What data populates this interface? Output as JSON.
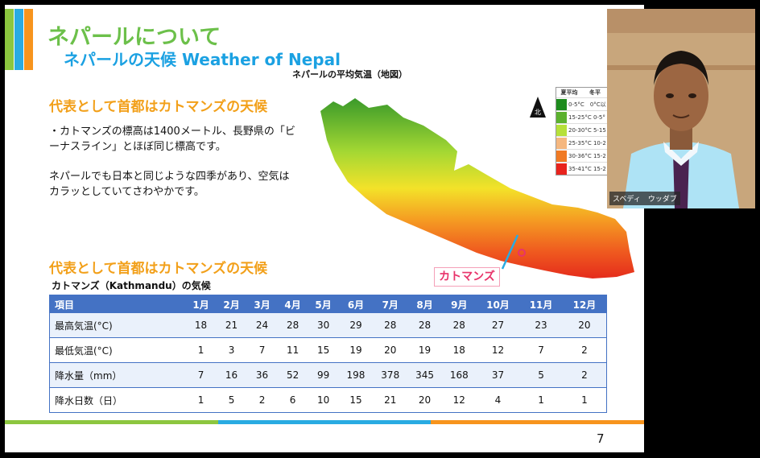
{
  "slide": {
    "title": "ネパールについて",
    "subtitle": "ネパールの天候 Weather of Nepal",
    "map_title": "ネパールの平均気温（地図）",
    "heading1": "代表として首都はカトマンズの天候",
    "paragraph1": "・カトマンズの標高は1400メートル、長野県の「ビーナスライン」とほぼ同じ標高です。",
    "paragraph2": "ネパールでも日本と同じような四季があり、空気はカラッとしていてさわやかです。",
    "heading2": "代表として首都はカトマンズの天候",
    "kathmandu_label": "カトマンズ",
    "compass_label": "北",
    "legend": {
      "headers": [
        "夏平均",
        "冬平"
      ],
      "rows": [
        {
          "text": "0-5°C　0°C以",
          "color": "#1e8c1e"
        },
        {
          "text": "15-25°C 0-5°",
          "color": "#5bb12e"
        },
        {
          "text": "20-30°C 5-15",
          "color": "#b6e03a"
        },
        {
          "text": "25-35°C 10-2",
          "color": "#f5b77f"
        },
        {
          "text": "30-36°C 15-2",
          "color": "#f07a24"
        },
        {
          "text": "35-41°C 15-2",
          "color": "#e8231d"
        }
      ]
    },
    "table_title": "カトマンズ（Kathmandu）の気候",
    "table": {
      "headers": [
        "項目",
        "1月",
        "2月",
        "3月",
        "4月",
        "5月",
        "6月",
        "7月",
        "8月",
        "9月",
        "10月",
        "11月",
        "12月"
      ],
      "rows": [
        [
          "最高気温(°C)",
          "18",
          "21",
          "24",
          "28",
          "30",
          "29",
          "28",
          "28",
          "28",
          "27",
          "23",
          "20"
        ],
        [
          "最低気温(°C)",
          "1",
          "3",
          "7",
          "11",
          "15",
          "19",
          "20",
          "19",
          "18",
          "12",
          "7",
          "2"
        ],
        [
          "降水量（mm）",
          "7",
          "16",
          "36",
          "52",
          "99",
          "198",
          "378",
          "345",
          "168",
          "37",
          "5",
          "2"
        ],
        [
          "降水日数（日）",
          "1",
          "5",
          "2",
          "6",
          "10",
          "15",
          "21",
          "20",
          "12",
          "4",
          "1",
          "1"
        ]
      ]
    },
    "page_number": "7"
  },
  "video": {
    "participant_name": "スベディ　ウッダブ"
  },
  "colors": {
    "title_green": "#6cc04a",
    "subtitle_blue": "#1ba1e2",
    "heading_orange": "#f2a01a",
    "table_blue": "#4472c4",
    "accent_pink": "#e8336a",
    "bar_green": "#8cc63f",
    "bar_blue": "#29abe2",
    "bar_orange": "#f7941d"
  }
}
